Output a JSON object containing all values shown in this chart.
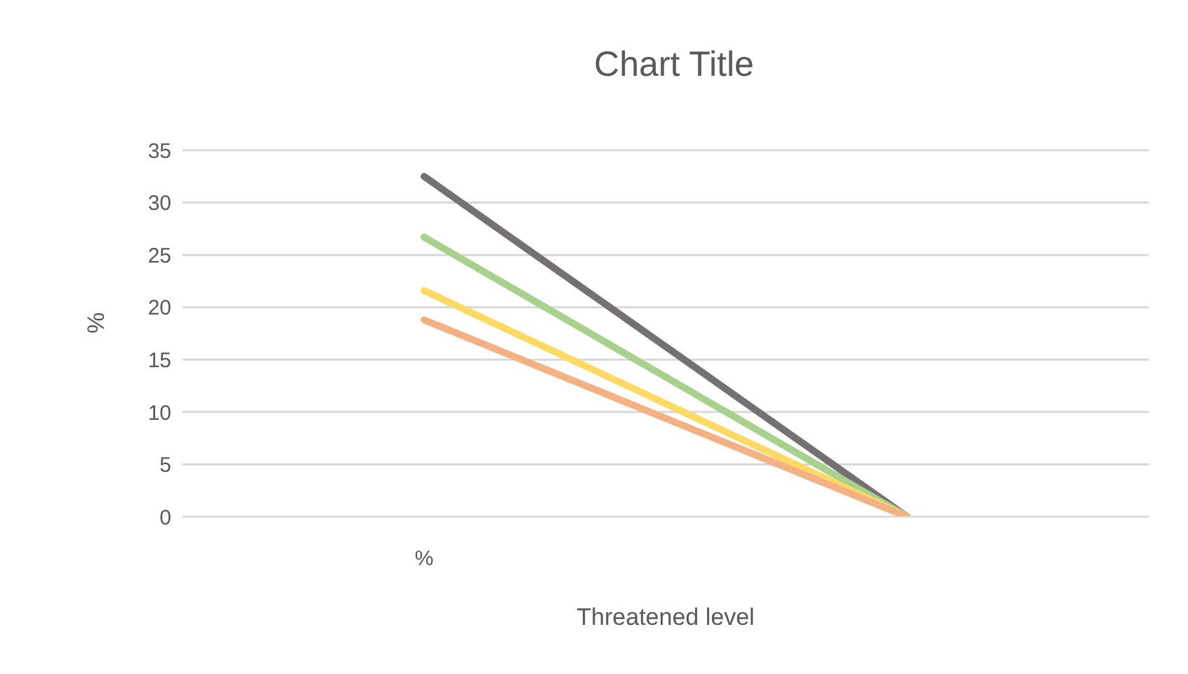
{
  "chart_data": {
    "type": "line",
    "title": "Chart Title",
    "xlabel": "Threatened level",
    "ylabel": "%",
    "categories": [
      "%",
      null
    ],
    "series": [
      {
        "color": "#767171",
        "values": [
          32.5,
          0
        ]
      },
      {
        "color": "#a9d18e",
        "values": [
          26.7,
          0
        ]
      },
      {
        "color": "#ffd966",
        "values": [
          21.6,
          0
        ]
      },
      {
        "color": "#f4b183",
        "values": [
          18.8,
          0
        ]
      }
    ],
    "ylim": [
      0,
      35
    ],
    "yticks": [
      0,
      5,
      10,
      15,
      20,
      25,
      30,
      35
    ],
    "grid": "y",
    "legend": false,
    "marker": "none",
    "line_style": "solid"
  }
}
